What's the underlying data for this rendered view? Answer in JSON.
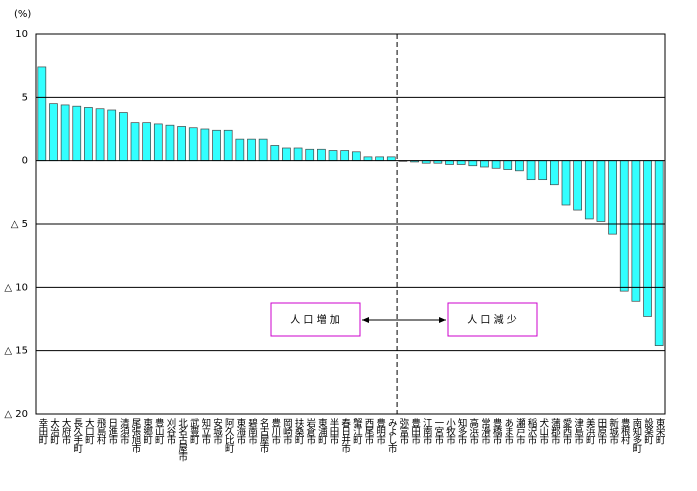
{
  "chart_data": {
    "type": "bar",
    "y_unit": "(%)",
    "categories": [
      "幸田町",
      "大治町",
      "大府市",
      "長久手町",
      "大口町",
      "飛島村",
      "日進市",
      "清須市",
      "尾張旭市",
      "東郷町",
      "豊山町",
      "刈谷市",
      "北名古屋市",
      "武豊町",
      "知立市",
      "安城市",
      "阿久比町",
      "東海市",
      "碧南市",
      "名古屋市",
      "豊川市",
      "岡崎市",
      "扶桑町",
      "岩倉市",
      "東浦町",
      "半田市",
      "春日井市",
      "蟹江町",
      "西尾市",
      "豊明市",
      "みよし市",
      "弥富市",
      "豊田市",
      "江南市",
      "一宮市",
      "小牧市",
      "知多市",
      "高浜市",
      "常滑市",
      "豊橋市",
      "あま市",
      "瀬戸市",
      "稲沢市",
      "犬山市",
      "蒲郡市",
      "愛西市",
      "津島市",
      "美浜町",
      "田原市",
      "新城市",
      "豊根村",
      "南知多町",
      "設楽町",
      "東栄町"
    ],
    "values": [
      7.4,
      4.5,
      4.4,
      4.3,
      4.2,
      4.1,
      4.0,
      3.8,
      3.0,
      3.0,
      2.9,
      2.8,
      2.7,
      2.6,
      2.5,
      2.4,
      2.4,
      1.7,
      1.7,
      1.7,
      1.2,
      1.0,
      1.0,
      0.9,
      0.9,
      0.8,
      0.8,
      0.7,
      0.3,
      0.3,
      0.3,
      -0.05,
      -0.1,
      -0.2,
      -0.2,
      -0.3,
      -0.3,
      -0.4,
      -0.5,
      -0.6,
      -0.7,
      -0.8,
      -1.5,
      -1.5,
      -1.9,
      -3.5,
      -3.9,
      -4.6,
      -4.8,
      -5.8,
      -10.3,
      -11.1,
      -12.3,
      -14.6
    ],
    "color": "#33ffff",
    "ylim": [
      -20,
      10
    ],
    "yticks": [
      10,
      5,
      0,
      {
        "value": -5,
        "label": "△ 5"
      },
      {
        "value": -10,
        "label": "△ 10"
      },
      {
        "value": -15,
        "label": "△ 15"
      },
      {
        "value": -20,
        "label": "△ 20"
      }
    ],
    "grid": true,
    "annotations": [
      "人 口 増 加",
      "人 口 減 少"
    ]
  }
}
